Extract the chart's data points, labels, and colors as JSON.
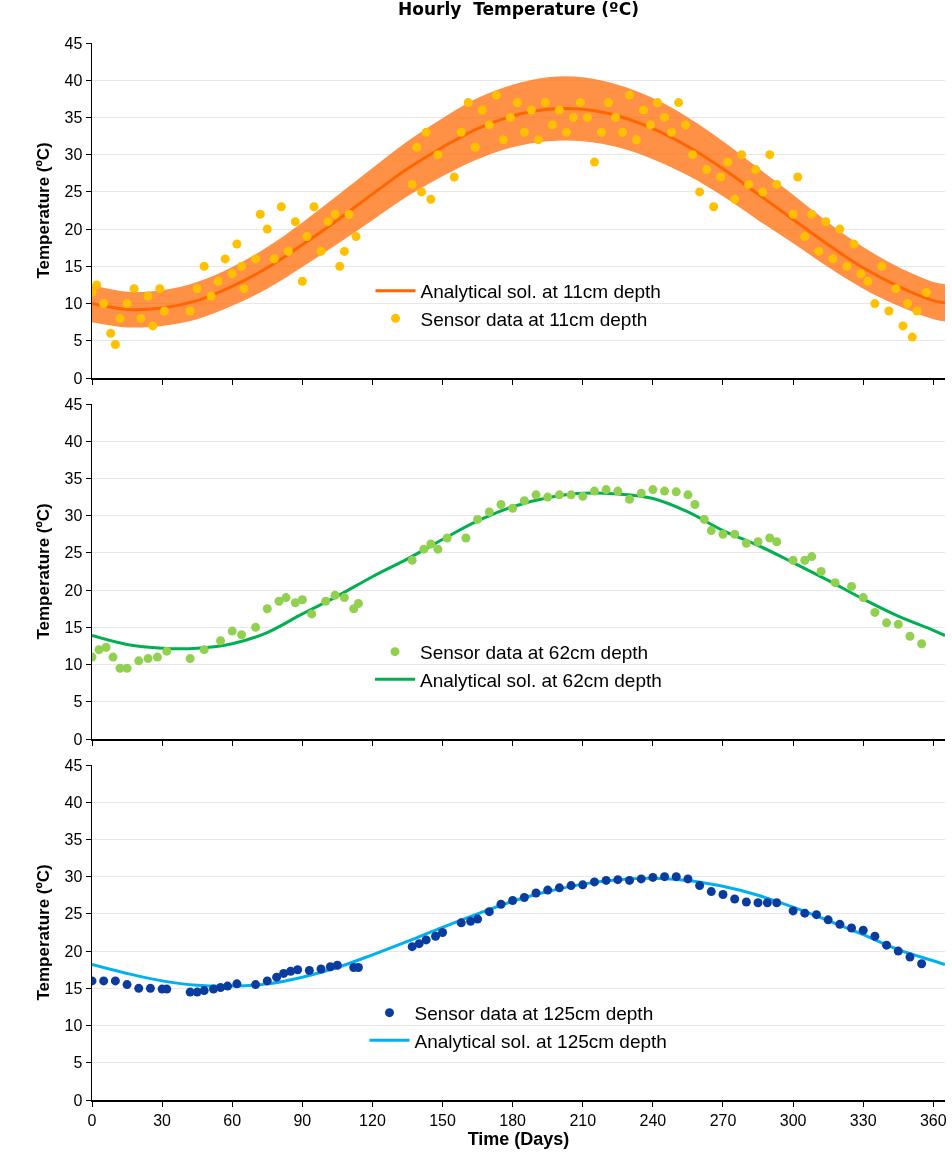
{
  "chart_data": [
    {
      "type": "scatter",
      "title": "Hourly  Temperature (ºC)",
      "ylabel": "Temperature (ºC)",
      "xlim": [
        0,
        365
      ],
      "xticks": [
        0,
        30,
        60,
        90,
        120,
        150,
        180,
        210,
        240,
        270,
        300,
        330,
        360
      ],
      "ylim": [
        0,
        45
      ],
      "yticks": [
        0,
        5,
        10,
        15,
        20,
        25,
        30,
        35,
        40,
        45
      ],
      "grid": "y",
      "legend": "bottom",
      "tick_labels": "y",
      "series": [
        {
          "name": "Sensor data at 11cm depth",
          "type": "scatter",
          "marker": "circle",
          "color": "#ffc000",
          "x": [
            0,
            2,
            5,
            8,
            10,
            12,
            15,
            18,
            21,
            24,
            26,
            29,
            31,
            42,
            45,
            48,
            51,
            54,
            57,
            60,
            62,
            64,
            65,
            70,
            72,
            75,
            78,
            81,
            84,
            87,
            90,
            92,
            95,
            98,
            101,
            104,
            106,
            108,
            110,
            113,
            137,
            139,
            141,
            143,
            145,
            148,
            155,
            158,
            161,
            164,
            167,
            170,
            173,
            176,
            179,
            182,
            185,
            188,
            191,
            194,
            197,
            200,
            203,
            206,
            209,
            212,
            215,
            218,
            221,
            224,
            227,
            230,
            233,
            236,
            239,
            242,
            245,
            248,
            251,
            254,
            257,
            260,
            263,
            266,
            269,
            272,
            275,
            278,
            281,
            284,
            287,
            290,
            293,
            300,
            302,
            305,
            308,
            311,
            314,
            317,
            320,
            323,
            326,
            329,
            332,
            335,
            338,
            341,
            344,
            347,
            349,
            351,
            353,
            357
          ],
          "values": [
            11.5,
            12.5,
            10,
            6,
            4.5,
            8,
            10,
            12,
            8,
            11,
            7,
            12,
            9,
            9,
            12,
            15,
            11,
            13,
            16,
            14,
            18,
            15,
            12,
            16,
            22,
            20,
            16,
            23,
            17,
            21,
            13,
            19,
            23,
            17,
            21,
            22,
            15,
            17,
            22,
            19,
            26,
            31,
            25,
            33,
            24,
            30,
            27,
            33,
            37,
            31,
            36,
            34,
            38,
            32,
            35,
            37,
            33,
            36,
            32,
            37,
            34,
            36,
            33,
            35,
            37,
            35,
            29,
            33,
            37,
            35,
            33,
            38,
            32,
            36,
            34,
            37,
            35,
            33,
            37,
            34,
            30,
            25,
            28,
            23,
            27,
            29,
            24,
            30,
            26,
            28,
            25,
            30,
            26,
            22,
            27,
            19,
            22,
            17,
            21,
            16,
            20,
            15,
            18,
            14,
            13,
            10,
            15,
            9,
            12,
            7,
            10,
            5.5,
            9,
            11.5
          ]
        },
        {
          "name": "Analytical sol. at 11cm depth",
          "type": "line",
          "marker": "none",
          "color": "#ff6600",
          "x": [
            0,
            15,
            30,
            45,
            60,
            75,
            90,
            105,
            120,
            135,
            150,
            165,
            180,
            195,
            210,
            225,
            240,
            255,
            270,
            285,
            300,
            315,
            330,
            345,
            360,
            365
          ],
          "values": [
            10.0,
            9.2,
            9.4,
            10.4,
            12.3,
            14.8,
            17.9,
            21.2,
            24.7,
            28.1,
            31.0,
            33.5,
            35.2,
            36.1,
            36.1,
            35.2,
            33.5,
            31.1,
            28.1,
            24.7,
            21.3,
            17.9,
            14.8,
            12.3,
            10.4,
            10.1
          ],
          "lower": [
            7.5,
            6.8,
            7.0,
            7.9,
            9.7,
            12.0,
            14.9,
            18.0,
            21.2,
            24.4,
            27.1,
            29.4,
            31.0,
            31.8,
            31.8,
            31.0,
            29.4,
            27.2,
            24.4,
            21.2,
            18.1,
            14.9,
            12.0,
            9.7,
            7.9,
            7.6
          ],
          "upper": [
            12.5,
            11.6,
            11.8,
            12.9,
            14.9,
            17.6,
            20.9,
            24.5,
            28.2,
            31.8,
            34.9,
            37.6,
            39.4,
            40.4,
            40.4,
            39.4,
            37.6,
            35.0,
            31.8,
            28.2,
            24.6,
            20.9,
            17.6,
            14.9,
            12.9,
            12.6
          ]
        }
      ]
    },
    {
      "type": "scatter",
      "ylabel": "Temperature (ºC)",
      "xlim": [
        0,
        365
      ],
      "xticks": [
        0,
        30,
        60,
        90,
        120,
        150,
        180,
        210,
        240,
        270,
        300,
        330,
        360
      ],
      "ylim": [
        0,
        45
      ],
      "yticks": [
        0,
        5,
        10,
        15,
        20,
        25,
        30,
        35,
        40,
        45
      ],
      "grid": "y",
      "legend": "bottom",
      "tick_labels": "y",
      "series": [
        {
          "name": "Sensor data at 62cm depth",
          "type": "scatter",
          "marker": "circle",
          "color": "#92d050",
          "x": [
            0,
            3,
            6,
            9,
            12,
            15,
            20,
            24,
            28,
            32,
            42,
            48,
            55,
            60,
            64,
            70,
            75,
            80,
            83,
            87,
            90,
            94,
            100,
            104,
            108,
            112,
            114,
            137,
            142,
            145,
            148,
            152,
            160,
            165,
            170,
            175,
            180,
            185,
            190,
            195,
            200,
            205,
            210,
            215,
            220,
            225,
            230,
            235,
            240,
            245,
            250,
            255,
            258,
            262,
            265,
            270,
            275,
            280,
            285,
            290,
            293,
            300,
            305,
            308,
            312,
            318,
            325,
            330,
            335,
            340,
            345,
            350,
            355
          ],
          "values": [
            11,
            12,
            12.3,
            11,
            9.5,
            9.5,
            10.5,
            10.8,
            11,
            11.8,
            10.8,
            12,
            13.2,
            14.5,
            14,
            15,
            17.5,
            18.5,
            19,
            18.3,
            18.7,
            16.8,
            18.5,
            19.3,
            19,
            17.5,
            18.2,
            24,
            25.5,
            26.2,
            25.5,
            27,
            27,
            29.5,
            30.5,
            31.5,
            31,
            32,
            32.8,
            32.5,
            32.8,
            32.8,
            32.6,
            33.3,
            33.5,
            33.3,
            32.2,
            33,
            33.5,
            33.3,
            33.2,
            32.8,
            31.5,
            29.5,
            28,
            27.5,
            27.5,
            26.3,
            26.5,
            27,
            26.5,
            24,
            24,
            24.5,
            22.5,
            21,
            20.5,
            19,
            17,
            15.6,
            15.4,
            13.8,
            12.8
          ]
        },
        {
          "name": "Analytical sol. at 62cm depth",
          "type": "line",
          "marker": "none",
          "color": "#00b050",
          "x": [
            0,
            15,
            30,
            45,
            60,
            75,
            90,
            105,
            120,
            135,
            150,
            165,
            180,
            195,
            210,
            225,
            240,
            255,
            270,
            285,
            300,
            315,
            330,
            345,
            360,
            365
          ],
          "values": [
            13.9,
            12.7,
            12.2,
            12.2,
            12.8,
            14.3,
            16.8,
            19.2,
            21.8,
            24.2,
            26.8,
            29.3,
            31.2,
            32.4,
            33.0,
            32.9,
            32.3,
            30.5,
            28.0,
            26.0,
            23.7,
            21.3,
            18.8,
            16.5,
            14.6,
            13.9
          ]
        }
      ]
    },
    {
      "type": "scatter",
      "xlabel": "Time (Days)",
      "ylabel": "Temperature (ºC)",
      "xlim": [
        0,
        365
      ],
      "xticks": [
        0,
        30,
        60,
        90,
        120,
        150,
        180,
        210,
        240,
        270,
        300,
        330,
        360
      ],
      "ylim": [
        0,
        45
      ],
      "yticks": [
        0,
        5,
        10,
        15,
        20,
        25,
        30,
        35,
        40,
        45
      ],
      "grid": "y",
      "legend": "bottom",
      "series": [
        {
          "name": "Sensor data at 125cm depth",
          "type": "scatter",
          "marker": "circle",
          "color": "#0a3ca0",
          "x": [
            0,
            5,
            10,
            15,
            20,
            25,
            30,
            32,
            42,
            45,
            48,
            52,
            55,
            58,
            62,
            70,
            75,
            79,
            82,
            85,
            88,
            93,
            98,
            102,
            105,
            112,
            114,
            137,
            140,
            143,
            147,
            150,
            158,
            162,
            165,
            170,
            175,
            180,
            185,
            190,
            195,
            200,
            205,
            210,
            215,
            220,
            225,
            230,
            235,
            240,
            245,
            250,
            255,
            260,
            265,
            270,
            275,
            280,
            285,
            289,
            293,
            300,
            305,
            310,
            315,
            320,
            325,
            330,
            335,
            340,
            345,
            350,
            355
          ],
          "values": [
            16,
            16,
            16,
            15.5,
            15,
            15,
            14.9,
            14.9,
            14.5,
            14.5,
            14.7,
            14.9,
            15.1,
            15.3,
            15.6,
            15.5,
            16,
            16.5,
            17,
            17.3,
            17.5,
            17.4,
            17.6,
            17.9,
            18.1,
            17.8,
            17.8,
            20.6,
            21,
            21.5,
            22,
            22.5,
            23.8,
            24,
            24.3,
            25.3,
            26.3,
            26.8,
            27.2,
            27.8,
            28.2,
            28.5,
            28.8,
            28.9,
            29.3,
            29.5,
            29.6,
            29.5,
            29.7,
            29.9,
            30,
            30,
            29.7,
            28.8,
            28,
            27.6,
            27,
            26.6,
            26.5,
            26.5,
            26.5,
            25.4,
            25.1,
            24.9,
            24.2,
            23.6,
            23.1,
            22.8,
            22,
            20.8,
            20,
            19.2,
            18.3
          ]
        },
        {
          "name": "Analytical sol. at 125cm depth",
          "type": "line",
          "marker": "none",
          "color": "#00b0f0",
          "x": [
            0,
            15,
            30,
            45,
            60,
            75,
            90,
            105,
            120,
            135,
            150,
            165,
            180,
            195,
            210,
            225,
            240,
            255,
            270,
            285,
            300,
            315,
            330,
            345,
            360,
            365
          ],
          "values": [
            18.2,
            17.0,
            16.0,
            15.4,
            15.3,
            15.6,
            16.5,
            17.8,
            19.5,
            21.3,
            23.2,
            25.0,
            26.7,
            28.0,
            29.0,
            29.6,
            29.8,
            29.5,
            28.7,
            27.5,
            25.9,
            24.1,
            22.2,
            20.2,
            18.7,
            18.2
          ]
        }
      ]
    }
  ]
}
